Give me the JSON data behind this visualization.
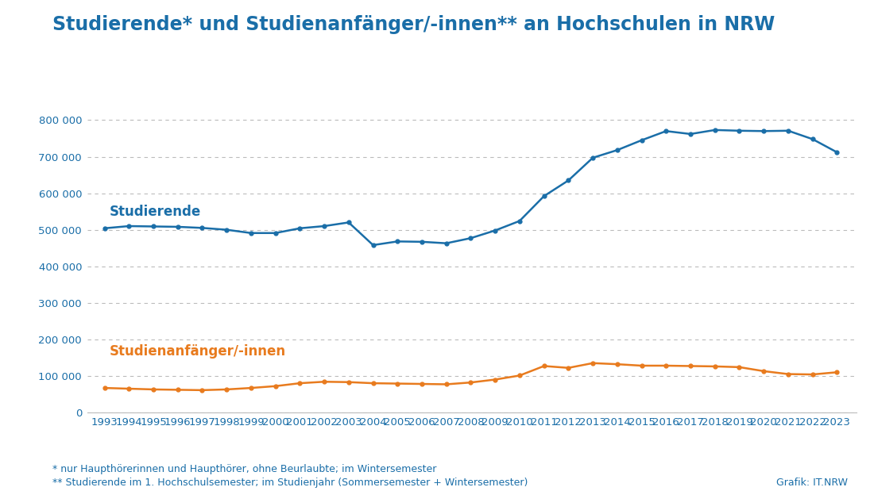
{
  "title": "Studierende* und Studienanfänger/-innen** an Hochschulen in NRW",
  "years": [
    1993,
    1994,
    1995,
    1996,
    1997,
    1998,
    1999,
    2000,
    2001,
    2002,
    2003,
    2004,
    2005,
    2006,
    2007,
    2008,
    2009,
    2010,
    2011,
    2012,
    2013,
    2014,
    2015,
    2016,
    2017,
    2018,
    2019,
    2020,
    2021,
    2022,
    2023
  ],
  "studierende": [
    504000,
    510000,
    509000,
    508000,
    505000,
    500000,
    491000,
    491000,
    504000,
    510000,
    520000,
    458000,
    468000,
    467000,
    463000,
    477000,
    498000,
    524000,
    592000,
    635000,
    697000,
    718000,
    745000,
    770000,
    762000,
    773000,
    771000,
    770000,
    771000,
    748000,
    712000
  ],
  "anfaenger": [
    67000,
    65000,
    63000,
    62000,
    61000,
    63000,
    67000,
    72000,
    80000,
    84000,
    83000,
    80000,
    79000,
    78000,
    77000,
    82000,
    90000,
    101000,
    127000,
    122000,
    135000,
    132000,
    128000,
    128000,
    127000,
    126000,
    124000,
    113000,
    105000,
    104000,
    110000
  ],
  "studierende_color": "#1a6ea8",
  "anfaenger_color": "#e87b1e",
  "background_color": "#ffffff",
  "grid_color": "#bbbbbb",
  "title_color": "#1a6ea8",
  "label_studierende": "Studierende",
  "label_anfaenger": "Studienanfänger/-innen",
  "footnote1": "* nur Haupthörerinnen und Haupthörer, ohne Beurlaubte; im Wintersemester",
  "footnote2": "** Studierende im 1. Hochschulsemester; im Studienjahr (Sommersemester + Wintersemester)",
  "source": "Grafik: IT.NRW",
  "ylim": [
    0,
    860000
  ],
  "yticks": [
    0,
    100000,
    200000,
    300000,
    400000,
    500000,
    600000,
    700000,
    800000
  ],
  "title_fontsize": 17,
  "label_fontsize": 12,
  "tick_fontsize": 9.5,
  "footnote_fontsize": 9,
  "source_fontsize": 9
}
